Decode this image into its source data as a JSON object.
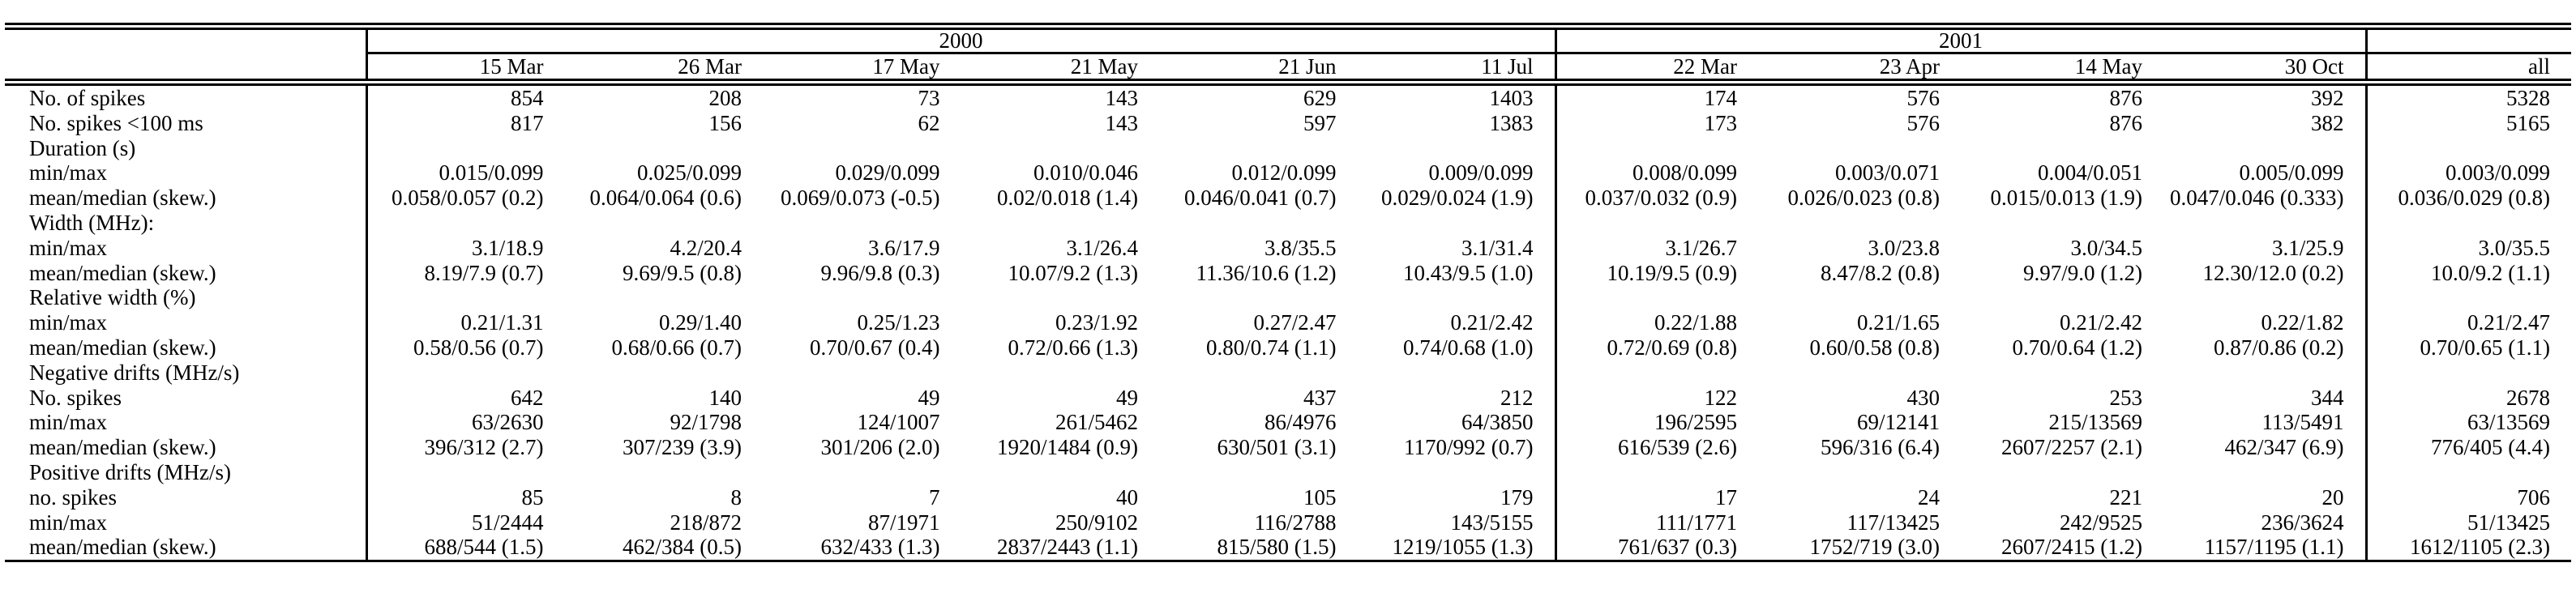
{
  "table": {
    "col_groups": [
      {
        "label": "2000",
        "span": 6
      },
      {
        "label": "2001",
        "span": 4
      },
      {
        "label": "",
        "span": 1
      }
    ],
    "columns": [
      "15 Mar",
      "26 Mar",
      "17 May",
      "21 May",
      "21 Jun",
      "11 Jul",
      "22 Mar",
      "23 Apr",
      "14 May",
      "30 Oct",
      "all"
    ],
    "rows": [
      {
        "label": "No. of spikes",
        "values": [
          "854",
          "208",
          "73",
          "143",
          "629",
          "1403",
          "174",
          "576",
          "876",
          "392",
          "5328"
        ]
      },
      {
        "label": "No. spikes <100 ms",
        "values": [
          "817",
          "156",
          "62",
          "143",
          "597",
          "1383",
          "173",
          "576",
          "876",
          "382",
          "5165"
        ]
      },
      {
        "label": "Duration (s)",
        "values": [
          "",
          "",
          "",
          "",
          "",
          "",
          "",
          "",
          "",
          "",
          ""
        ]
      },
      {
        "label": "min/max",
        "values": [
          "0.015/0.099",
          "0.025/0.099",
          "0.029/0.099",
          "0.010/0.046",
          "0.012/0.099",
          "0.009/0.099",
          "0.008/0.099",
          "0.003/0.071",
          "0.004/0.051",
          "0.005/0.099",
          "0.003/0.099"
        ]
      },
      {
        "label": "mean/median (skew.)",
        "values": [
          "0.058/0.057 (0.2)",
          "0.064/0.064 (0.6)",
          "0.069/0.073 (-0.5)",
          "0.02/0.018 (1.4)",
          "0.046/0.041 (0.7)",
          "0.029/0.024 (1.9)",
          "0.037/0.032 (0.9)",
          "0.026/0.023 (0.8)",
          "0.015/0.013 (1.9)",
          "0.047/0.046 (0.333)",
          "0.036/0.029 (0.8)"
        ]
      },
      {
        "label": "Width (MHz):",
        "values": [
          "",
          "",
          "",
          "",
          "",
          "",
          "",
          "",
          "",
          "",
          ""
        ]
      },
      {
        "label": "min/max",
        "values": [
          "3.1/18.9",
          "4.2/20.4",
          "3.6/17.9",
          "3.1/26.4",
          "3.8/35.5",
          "3.1/31.4",
          "3.1/26.7",
          "3.0/23.8",
          "3.0/34.5",
          "3.1/25.9",
          "3.0/35.5"
        ]
      },
      {
        "label": "mean/median (skew.)",
        "values": [
          "8.19/7.9 (0.7)",
          "9.69/9.5 (0.8)",
          "9.96/9.8 (0.3)",
          "10.07/9.2 (1.3)",
          "11.36/10.6 (1.2)",
          "10.43/9.5 (1.0)",
          "10.19/9.5 (0.9)",
          "8.47/8.2 (0.8)",
          "9.97/9.0 (1.2)",
          "12.30/12.0 (0.2)",
          "10.0/9.2 (1.1)"
        ]
      },
      {
        "label": "Relative width (%)",
        "values": [
          "",
          "",
          "",
          "",
          "",
          "",
          "",
          "",
          "",
          "",
          ""
        ]
      },
      {
        "label": "min/max",
        "values": [
          "0.21/1.31",
          "0.29/1.40",
          "0.25/1.23",
          "0.23/1.92",
          "0.27/2.47",
          "0.21/2.42",
          "0.22/1.88",
          "0.21/1.65",
          "0.21/2.42",
          "0.22/1.82",
          "0.21/2.47"
        ]
      },
      {
        "label": "mean/median (skew.)",
        "values": [
          "0.58/0.56 (0.7)",
          "0.68/0.66 (0.7)",
          "0.70/0.67 (0.4)",
          "0.72/0.66 (1.3)",
          "0.80/0.74 (1.1)",
          "0.74/0.68 (1.0)",
          "0.72/0.69 (0.8)",
          "0.60/0.58 (0.8)",
          "0.70/0.64 (1.2)",
          "0.87/0.86 (0.2)",
          "0.70/0.65 (1.1)"
        ]
      },
      {
        "label": "Negative drifts (MHz/s)",
        "values": [
          "",
          "",
          "",
          "",
          "",
          "",
          "",
          "",
          "",
          "",
          ""
        ]
      },
      {
        "label": "No. spikes",
        "values": [
          "642",
          "140",
          "49",
          "49",
          "437",
          "212",
          "122",
          "430",
          "253",
          "344",
          "2678"
        ]
      },
      {
        "label": "min/max",
        "values": [
          "63/2630",
          "92/1798",
          "124/1007",
          "261/5462",
          "86/4976",
          "64/3850",
          "196/2595",
          "69/12141",
          "215/13569",
          "113/5491",
          "63/13569"
        ]
      },
      {
        "label": "mean/median (skew.)",
        "values": [
          "396/312 (2.7)",
          "307/239 (3.9)",
          "301/206 (2.0)",
          "1920/1484 (0.9)",
          "630/501 (3.1)",
          "1170/992 (0.7)",
          "616/539 (2.6)",
          "596/316 (6.4)",
          "2607/2257 (2.1)",
          "462/347 (6.9)",
          "776/405 (4.4)"
        ]
      },
      {
        "label": "Positive drifts (MHz/s)",
        "values": [
          "",
          "",
          "",
          "",
          "",
          "",
          "",
          "",
          "",
          "",
          ""
        ]
      },
      {
        "label": "no. spikes",
        "values": [
          "85",
          "8",
          "7",
          "40",
          "105",
          "179",
          "17",
          "24",
          "221",
          "20",
          "706"
        ]
      },
      {
        "label": "min/max",
        "values": [
          "51/2444",
          "218/872",
          "87/1971",
          "250/9102",
          "116/2788",
          "143/5155",
          "111/1771",
          "117/13425",
          "242/9525",
          "236/3624",
          "51/13425"
        ]
      },
      {
        "label": "mean/median (skew.)",
        "values": [
          "688/544 (1.5)",
          "462/384 (0.5)",
          "632/433 (1.3)",
          "2837/2443 (1.1)",
          "815/580 (1.5)",
          "1219/1055 (1.3)",
          "761/637 (0.3)",
          "1752/719 (3.0)",
          "2607/2415 (1.2)",
          "1157/1195 (1.1)",
          "1612/1105 (2.3)"
        ]
      }
    ]
  }
}
